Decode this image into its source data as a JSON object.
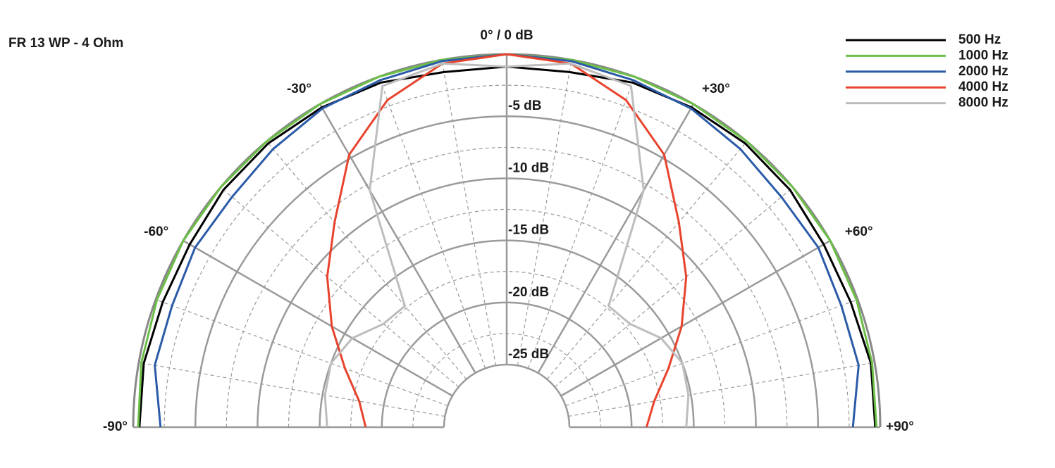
{
  "chart_data": {
    "type": "polar",
    "title": "FR 13 WP - 4 Ohm",
    "theta": [
      -90,
      -80,
      -70,
      -60,
      -50,
      -40,
      -30,
      -20,
      -10,
      0,
      10,
      20,
      30,
      40,
      50,
      60,
      70,
      80,
      90
    ],
    "thetaticks": [
      {
        "value": -90,
        "label": "-90°"
      },
      {
        "value": -60,
        "label": "-60°"
      },
      {
        "value": -30,
        "label": "-30°"
      },
      {
        "value": 0,
        "label": "0° / 0 dB"
      },
      {
        "value": 30,
        "label": "+30°"
      },
      {
        "value": 60,
        "label": "+60°"
      },
      {
        "value": 90,
        "label": "+90°"
      }
    ],
    "rlim": [
      -25,
      0
    ],
    "rticks": [
      {
        "value": -5,
        "label": "-5 dB"
      },
      {
        "value": -10,
        "label": "-10 dB"
      },
      {
        "value": -15,
        "label": "-15 dB"
      },
      {
        "value": -20,
        "label": "-20 dB"
      },
      {
        "value": -25,
        "label": "-25 dB"
      }
    ],
    "grid": true,
    "legend": "upper right",
    "series": [
      {
        "name": "500 Hz",
        "color": "#000000",
        "values": [
          -0.5,
          -0.4,
          -0.6,
          -0.6,
          -0.3,
          -0.2,
          -0.3,
          -0.5,
          -1.0,
          -1.0,
          -1.0,
          -0.5,
          -0.3,
          -0.2,
          -0.3,
          -0.6,
          -0.6,
          -0.3,
          -0.4
        ]
      },
      {
        "name": "1000 Hz",
        "color": "#6cbf46",
        "values": [
          -0.4,
          -0.2,
          -0.1,
          0,
          0,
          0,
          0,
          0,
          0,
          0,
          0,
          0,
          0,
          0,
          0,
          0,
          -0.1,
          -0.2,
          -0.3
        ]
      },
      {
        "name": "2000 Hz",
        "color": "#2b5ba8",
        "values": [
          -2.2,
          -1.3,
          -1.4,
          -1.1,
          -1.2,
          -0.8,
          -0.4,
          -0.3,
          -0.1,
          0,
          -0.1,
          -0.3,
          -0.4,
          -0.8,
          -1.2,
          -1.1,
          -1.4,
          -1.3,
          -2.2
        ]
      },
      {
        "name": "4000 Hz",
        "color": "#e8432d",
        "values": [
          -18.7,
          -18.0,
          -16.2,
          -13.8,
          -11.2,
          -8.5,
          -4.7,
          -2.0,
          -0.3,
          0,
          -0.3,
          -2.0,
          -4.7,
          -8.5,
          -11.2,
          -13.8,
          -16.2,
          -18.0,
          -18.8
        ]
      },
      {
        "name": "8000 Hz",
        "color": "#bdbdbd",
        "values": [
          -15.6,
          -15.2,
          -15.0,
          -15.7,
          -17.1,
          -17.3,
          -8.0,
          -0.8,
          -0.3,
          -1.0,
          -0.3,
          -0.8,
          -8.0,
          -17.3,
          -17.1,
          -15.7,
          -15.0,
          -15.2,
          -15.6
        ]
      }
    ]
  }
}
